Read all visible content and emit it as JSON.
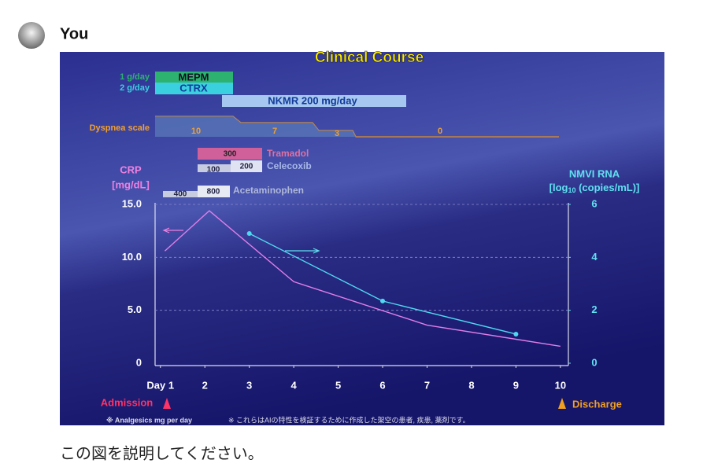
{
  "user": {
    "name": "You"
  },
  "message": {
    "text": "この図を説明してください。"
  },
  "chart_data": {
    "type": "line",
    "title": "Clinical Course",
    "treatments": [
      {
        "dose": "1 g/day",
        "name": "MEPM"
      },
      {
        "dose": "2 g/day",
        "name": "CTRX"
      },
      {
        "name": "NKMR 200 mg/day"
      }
    ],
    "dyspnea": {
      "label": "Dyspnea scale",
      "scores": [
        "10",
        "7",
        "3",
        "0"
      ]
    },
    "analgesics": [
      {
        "name": "Tramadol",
        "doses": [
          "300"
        ]
      },
      {
        "name": "Celecoxib",
        "doses": [
          "100",
          "200"
        ]
      },
      {
        "name": "Acetaminophen",
        "doses": [
          "400",
          "800"
        ]
      }
    ],
    "ylabel": [
      "CRP",
      "[mg/dL]"
    ],
    "y2label": [
      "NMVI RNA",
      "[log",
      "10",
      " (copies/mL)]"
    ],
    "xlim": [
      0.88,
      10.18
    ],
    "xticks": [
      {
        "value": 1,
        "label": "Day 1"
      },
      2,
      3,
      4,
      5,
      6,
      7,
      8,
      9,
      10
    ],
    "ylim": [
      0,
      15
    ],
    "yticks": [
      0,
      {
        "value": 5,
        "label": "5.0"
      },
      {
        "value": 10,
        "label": "10.0"
      },
      {
        "value": 15,
        "label": "15.0"
      }
    ],
    "y2lim": [
      0,
      6
    ],
    "y2ticks": [
      0,
      2,
      4,
      6
    ],
    "grid": true,
    "series": [
      {
        "color": "#e07ee8",
        "axis": "y",
        "x": [
          1.1,
          2.1,
          4,
          7,
          10
        ],
        "values": [
          10.6,
          14.4,
          7.7,
          3.6,
          1.6
        ]
      },
      {
        "color": "#4fd8f0",
        "axis": "y2",
        "markers": true,
        "x": [
          3,
          6,
          9
        ],
        "values": [
          4.9,
          2.35,
          1.1
        ]
      }
    ],
    "admission": "Admission",
    "discharge": "Discharge",
    "notes": [
      "※ Analgesics mg per day",
      "※ これらはAIの特性を検証するために作成した架空の患者, 疾患, 薬剤です。"
    ]
  }
}
